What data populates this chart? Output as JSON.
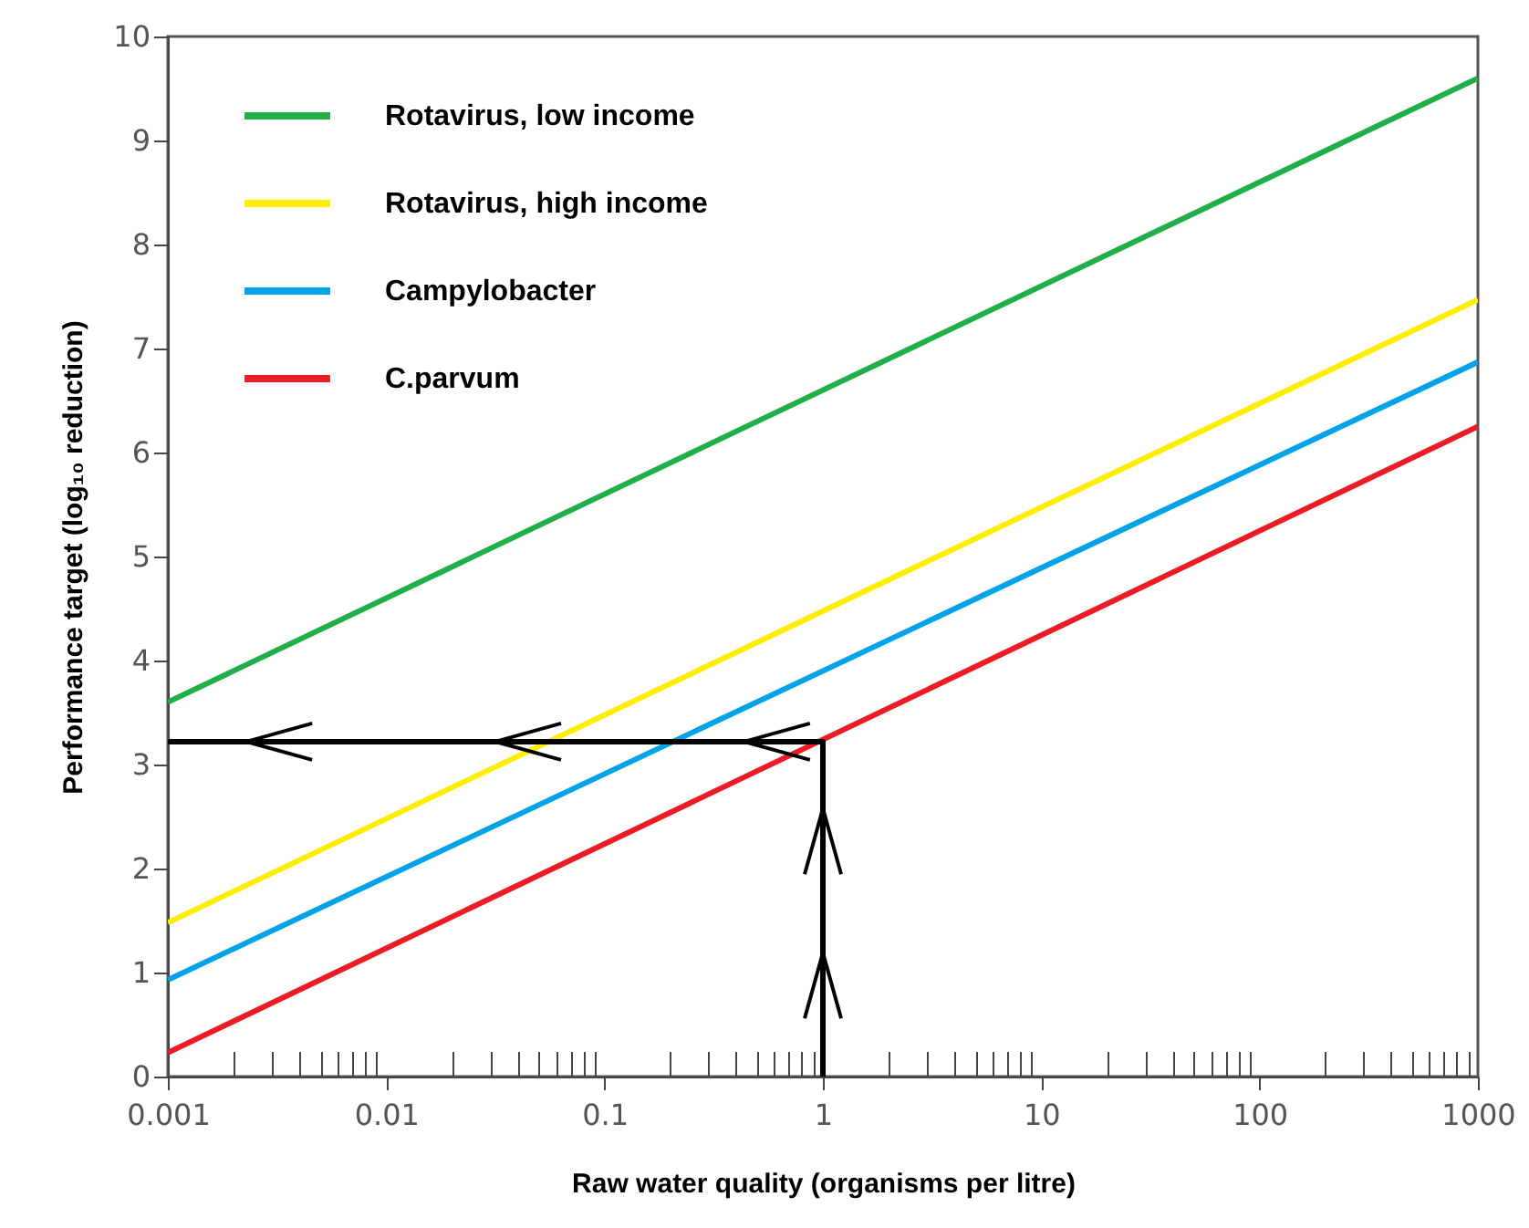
{
  "chart_data": {
    "type": "line",
    "xlabel": "Raw water quality (organisms per litre)",
    "ylabel": "Performance target (log₁₀ reduction)",
    "log": "x",
    "grid": false,
    "legend": "top left",
    "line_style": "solid",
    "marker": "none",
    "xlim": [
      0.001,
      1000
    ],
    "ylim": [
      0,
      10
    ],
    "xticks": [
      0.001,
      {
        "value": 0.002,
        "label": null
      },
      {
        "value": 0.003,
        "label": null
      },
      {
        "value": 0.004,
        "label": null
      },
      {
        "value": 0.005,
        "label": null
      },
      {
        "value": 0.006,
        "label": null
      },
      {
        "value": 0.007,
        "label": null
      },
      {
        "value": 0.008,
        "label": null
      },
      {
        "value": 0.009,
        "label": null
      },
      0.01,
      {
        "value": 0.02,
        "label": null
      },
      {
        "value": 0.03,
        "label": null
      },
      {
        "value": 0.04,
        "label": null
      },
      {
        "value": 0.05,
        "label": null
      },
      {
        "value": 0.06,
        "label": null
      },
      {
        "value": 0.07,
        "label": null
      },
      {
        "value": 0.08,
        "label": null
      },
      {
        "value": 0.09,
        "label": null
      },
      0.1,
      {
        "value": 0.2,
        "label": null
      },
      {
        "value": 0.3,
        "label": null
      },
      {
        "value": 0.4,
        "label": null
      },
      {
        "value": 0.5,
        "label": null
      },
      {
        "value": 0.6,
        "label": null
      },
      {
        "value": 0.7,
        "label": null
      },
      {
        "value": 0.8,
        "label": null
      },
      {
        "value": 0.9,
        "label": null
      },
      1,
      {
        "value": 2,
        "label": null
      },
      {
        "value": 3,
        "label": null
      },
      {
        "value": 4,
        "label": null
      },
      {
        "value": 5,
        "label": null
      },
      {
        "value": 6,
        "label": null
      },
      {
        "value": 7,
        "label": null
      },
      {
        "value": 8,
        "label": null
      },
      {
        "value": 9,
        "label": null
      },
      10,
      {
        "value": 20,
        "label": null
      },
      {
        "value": 30,
        "label": null
      },
      {
        "value": 40,
        "label": null
      },
      {
        "value": 50,
        "label": null
      },
      {
        "value": 60,
        "label": null
      },
      {
        "value": 70,
        "label": null
      },
      {
        "value": 80,
        "label": null
      },
      {
        "value": 90,
        "label": null
      },
      100,
      {
        "value": 200,
        "label": null
      },
      {
        "value": 300,
        "label": null
      },
      {
        "value": 400,
        "label": null
      },
      {
        "value": 500,
        "label": null
      },
      {
        "value": 600,
        "label": null
      },
      {
        "value": 700,
        "label": null
      },
      {
        "value": 800,
        "label": null
      },
      {
        "value": 900,
        "label": null
      },
      1000
    ],
    "yticks": [
      0,
      1,
      2,
      3,
      4,
      5,
      6,
      7,
      8,
      9,
      10
    ],
    "series": [
      {
        "name": "Rotavirus, low income",
        "color": "#1fae47",
        "x": [
          0.001,
          1000
        ],
        "values": [
          3.6,
          9.6
        ]
      },
      {
        "name": "Rotavirus, high income",
        "color": "#ffee00",
        "x": [
          0.001,
          1000
        ],
        "values": [
          1.48,
          7.47
        ]
      },
      {
        "name": "Campylobacter",
        "color": "#00a2e8",
        "x": [
          0.001,
          1000
        ],
        "values": [
          0.93,
          6.87
        ]
      },
      {
        "name": "C.parvum",
        "color": "#ed1c24",
        "x": [
          0.001,
          1000
        ],
        "values": [
          0.23,
          6.25
        ]
      },
      {
        "color": "#000000",
        "x": [
          1,
          1,
          0.001
        ],
        "values": [
          0,
          3.22,
          3.22
        ]
      }
    ]
  }
}
